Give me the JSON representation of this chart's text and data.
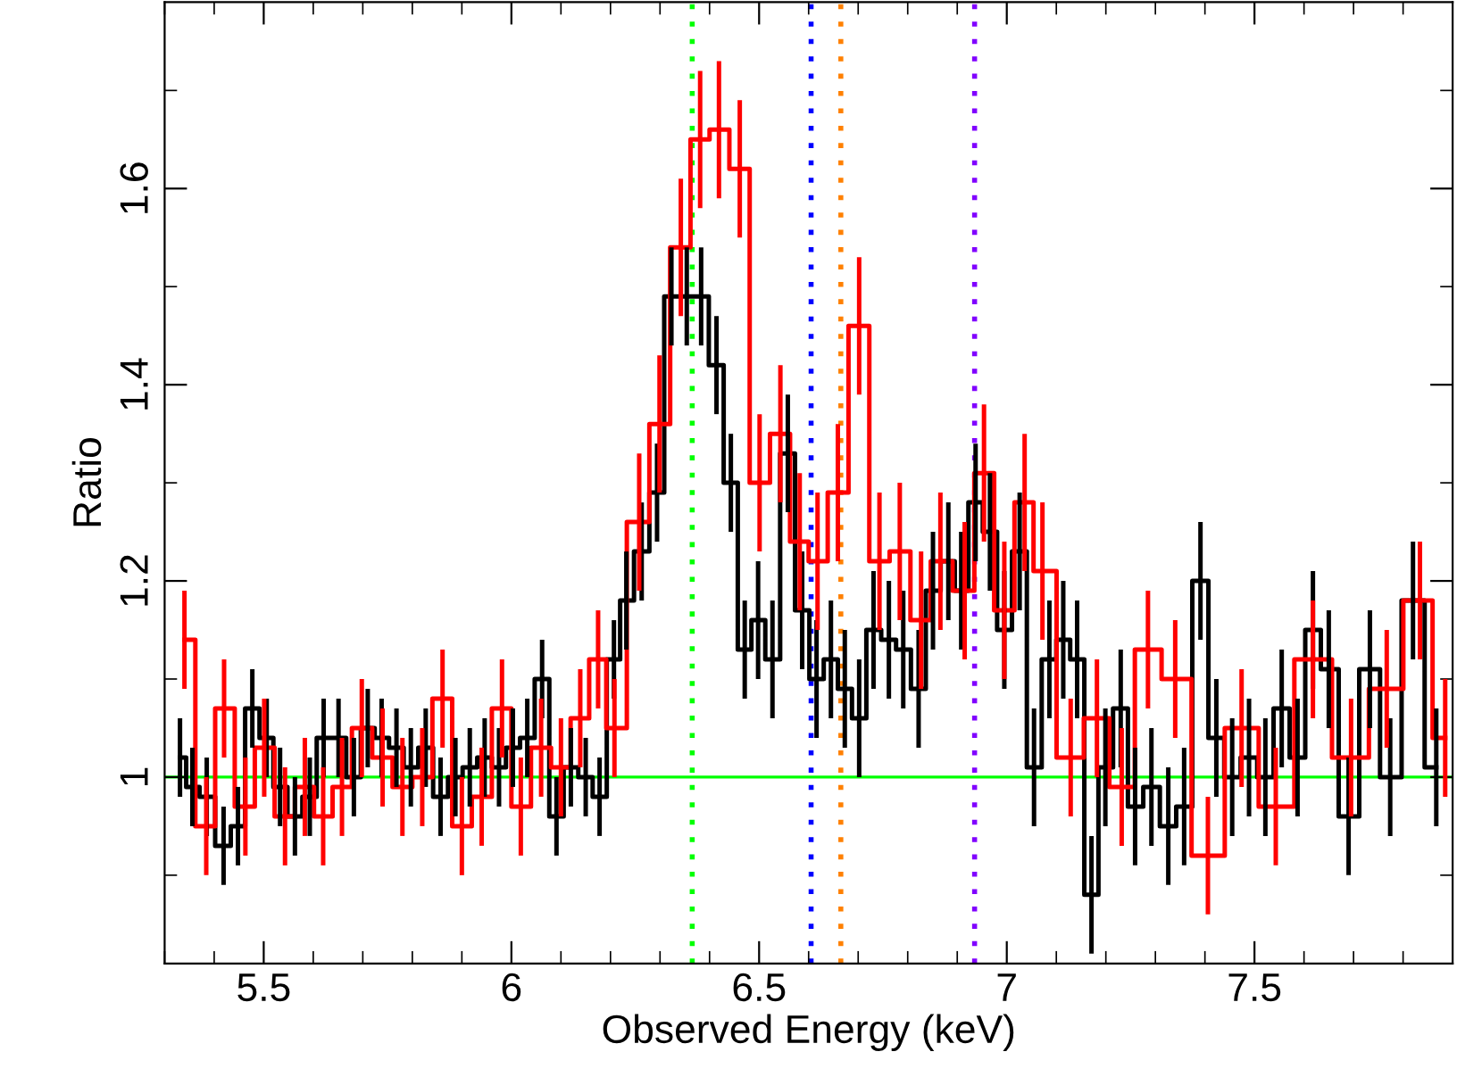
{
  "chart_data": {
    "type": "step",
    "xlabel": "Observed Energy (keV)",
    "ylabel": "Ratio",
    "xlim": [
      5.3,
      7.9
    ],
    "ylim": [
      0.81,
      1.79
    ],
    "xticks": [
      {
        "value": 5.3,
        "label": null
      },
      {
        "value": 5.4,
        "label": null
      },
      5.5,
      {
        "value": 5.6,
        "label": null
      },
      {
        "value": 5.7,
        "label": null
      },
      {
        "value": 5.8,
        "label": null
      },
      {
        "value": 5.9,
        "label": null
      },
      6,
      {
        "value": 6.1,
        "label": null
      },
      {
        "value": 6.2,
        "label": null
      },
      {
        "value": 6.3,
        "label": null
      },
      {
        "value": 6.4,
        "label": null
      },
      6.5,
      {
        "value": 6.6,
        "label": null
      },
      {
        "value": 6.7,
        "label": null
      },
      {
        "value": 6.8,
        "label": null
      },
      {
        "value": 6.9,
        "label": null
      },
      7,
      {
        "value": 7.1,
        "label": null
      },
      {
        "value": 7.2,
        "label": null
      },
      {
        "value": 7.3,
        "label": null
      },
      {
        "value": 7.4,
        "label": null
      },
      7.5,
      {
        "value": 7.6,
        "label": null
      },
      {
        "value": 7.7,
        "label": null
      },
      {
        "value": 7.8,
        "label": null
      }
    ],
    "yticks": [
      {
        "value": 0.9,
        "label": null
      },
      1,
      {
        "value": 1.1,
        "label": null
      },
      1.2,
      {
        "value": 1.3,
        "label": null
      },
      1.4,
      {
        "value": 1.5,
        "label": null
      },
      1.6,
      {
        "value": 1.7,
        "label": null
      }
    ],
    "marker": "none",
    "line_style": "solid",
    "series": [
      {
        "color": "#000000",
        "x": [
          5.331,
          5.356,
          5.385,
          5.419,
          5.448,
          5.477,
          5.506,
          5.533,
          5.563,
          5.593,
          5.621,
          5.651,
          5.682,
          5.71,
          5.738,
          5.768,
          5.797,
          5.827,
          5.857,
          5.887,
          5.916,
          5.946,
          5.975,
          6.003,
          6.032,
          6.062,
          6.091,
          6.12,
          6.15,
          6.178,
          6.207,
          6.232,
          6.263,
          6.294,
          6.323,
          6.354,
          6.383,
          6.414,
          6.443,
          6.471,
          6.498,
          6.527,
          6.558,
          6.587,
          6.616,
          6.645,
          6.673,
          6.702,
          6.731,
          6.762,
          6.791,
          6.822,
          6.851,
          6.882,
          6.908,
          6.937,
          6.966,
          6.995,
          7.026,
          7.055,
          7.086,
          7.114,
          7.142,
          7.171,
          7.199,
          7.23,
          7.259,
          7.292,
          7.326,
          7.358,
          7.391,
          7.423,
          7.455,
          7.489,
          7.522,
          7.555,
          7.587,
          7.618,
          7.65,
          7.69,
          7.733,
          7.774,
          7.82,
          7.867
        ],
        "values": [
          1.02,
          0.99,
          0.98,
          0.93,
          0.95,
          1.07,
          1.04,
          0.99,
          0.96,
          0.98,
          1.04,
          1.04,
          1.0,
          1.05,
          1.04,
          1.03,
          1.01,
          1.03,
          0.98,
          1.0,
          1.01,
          1.02,
          1.01,
          1.03,
          1.04,
          1.1,
          0.96,
          1.01,
          1.0,
          0.98,
          1.12,
          1.18,
          1.23,
          1.29,
          1.49,
          1.49,
          1.49,
          1.42,
          1.3,
          1.13,
          1.16,
          1.12,
          1.33,
          1.17,
          1.1,
          1.12,
          1.09,
          1.06,
          1.15,
          1.14,
          1.13,
          1.09,
          1.19,
          1.22,
          1.19,
          1.28,
          1.25,
          1.15,
          1.23,
          1.01,
          1.12,
          1.14,
          1.12,
          0.88,
          1.01,
          1.07,
          0.97,
          0.99,
          0.95,
          0.97,
          1.2,
          1.04,
          1.0,
          1.02,
          1.0,
          1.07,
          1.02,
          1.15,
          1.11,
          0.96,
          1.11,
          1.0,
          1.18,
          1.01
        ],
        "errors": [
          0.04,
          0.04,
          0.04,
          0.04,
          0.04,
          0.04,
          0.04,
          0.04,
          0.04,
          0.04,
          0.04,
          0.04,
          0.04,
          0.04,
          0.04,
          0.04,
          0.04,
          0.04,
          0.04,
          0.04,
          0.04,
          0.04,
          0.04,
          0.04,
          0.04,
          0.04,
          0.04,
          0.04,
          0.04,
          0.04,
          0.04,
          0.05,
          0.05,
          0.05,
          0.05,
          0.05,
          0.05,
          0.05,
          0.05,
          0.05,
          0.06,
          0.06,
          0.06,
          0.06,
          0.06,
          0.06,
          0.06,
          0.06,
          0.06,
          0.06,
          0.06,
          0.06,
          0.06,
          0.06,
          0.06,
          0.06,
          0.06,
          0.06,
          0.06,
          0.06,
          0.06,
          0.06,
          0.06,
          0.06,
          0.06,
          0.06,
          0.06,
          0.06,
          0.06,
          0.06,
          0.06,
          0.06,
          0.06,
          0.06,
          0.06,
          0.06,
          0.06,
          0.06,
          0.06,
          0.06,
          0.06,
          0.06,
          0.06,
          0.06
        ]
      },
      {
        "color": "#ff0000",
        "x": [
          5.34,
          5.384,
          5.42,
          5.463,
          5.501,
          5.543,
          5.583,
          5.62,
          5.658,
          5.698,
          5.74,
          5.78,
          5.82,
          5.861,
          5.9,
          5.94,
          5.981,
          6.019,
          6.06,
          6.1,
          6.139,
          6.175,
          6.208,
          6.258,
          6.299,
          6.342,
          6.381,
          6.419,
          6.461,
          6.501,
          6.543,
          6.582,
          6.618,
          6.659,
          6.702,
          6.743,
          6.784,
          6.827,
          6.866,
          6.915,
          6.954,
          6.995,
          7.036,
          7.072,
          7.129,
          7.182,
          7.232,
          7.285,
          7.34,
          7.406,
          7.474,
          7.543,
          7.618,
          7.695,
          7.767,
          7.834,
          7.885
        ],
        "values": [
          1.14,
          0.95,
          1.07,
          0.97,
          1.03,
          0.96,
          0.99,
          0.96,
          0.99,
          1.05,
          1.02,
          0.99,
          1.0,
          1.08,
          0.95,
          0.98,
          1.07,
          0.97,
          1.03,
          1.01,
          1.06,
          1.12,
          1.05,
          1.26,
          1.36,
          1.54,
          1.65,
          1.66,
          1.62,
          1.3,
          1.35,
          1.24,
          1.22,
          1.29,
          1.46,
          1.22,
          1.23,
          1.16,
          1.22,
          1.19,
          1.31,
          1.17,
          1.28,
          1.21,
          1.02,
          1.06,
          0.99,
          1.13,
          1.1,
          0.92,
          1.05,
          0.97,
          1.12,
          1.02,
          1.09,
          1.18,
          1.04
        ],
        "errors": [
          0.05,
          0.05,
          0.05,
          0.05,
          0.05,
          0.05,
          0.05,
          0.05,
          0.05,
          0.05,
          0.05,
          0.05,
          0.05,
          0.05,
          0.05,
          0.05,
          0.05,
          0.05,
          0.05,
          0.05,
          0.05,
          0.05,
          0.05,
          0.07,
          0.07,
          0.07,
          0.07,
          0.07,
          0.07,
          0.07,
          0.07,
          0.07,
          0.07,
          0.07,
          0.07,
          0.07,
          0.07,
          0.07,
          0.07,
          0.07,
          0.07,
          0.07,
          0.07,
          0.07,
          0.06,
          0.06,
          0.06,
          0.06,
          0.06,
          0.06,
          0.06,
          0.06,
          0.06,
          0.06,
          0.06,
          0.06,
          0.06
        ]
      }
    ],
    "ref_lines": [
      {
        "axis": "y",
        "value": 1,
        "color": "#00ff00",
        "line_style": "solid"
      },
      {
        "axis": "x",
        "value": 6.365,
        "color": "#00ff00",
        "line_style": "dotted"
      },
      {
        "axis": "x",
        "value": 6.605,
        "color": "#0000ff",
        "line_style": "dotted"
      },
      {
        "axis": "x",
        "value": 6.665,
        "color": "#ff8000",
        "line_style": "dotted"
      },
      {
        "axis": "x",
        "value": 6.935,
        "color": "#8000ff",
        "line_style": "dotted"
      }
    ]
  }
}
